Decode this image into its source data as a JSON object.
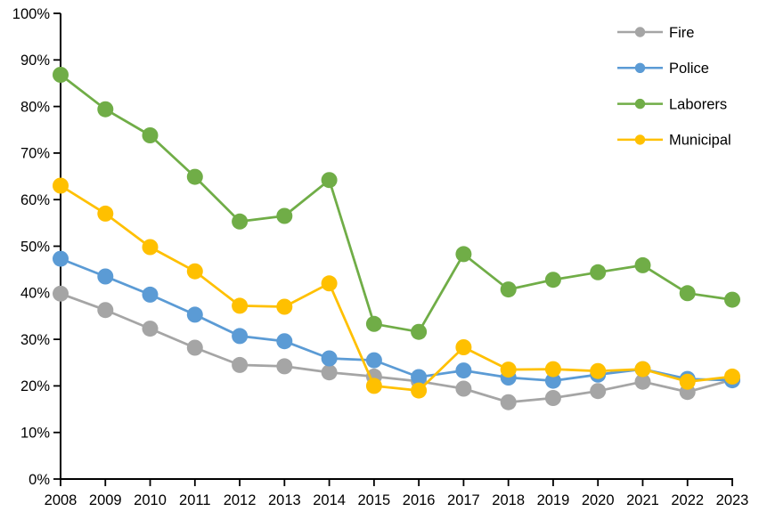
{
  "chart_data": {
    "type": "line",
    "x": [
      2008,
      2009,
      2010,
      2011,
      2012,
      2013,
      2014,
      2015,
      2016,
      2017,
      2018,
      2019,
      2020,
      2021,
      2022,
      2023
    ],
    "series": [
      {
        "name": "Fire",
        "color": "#A5A5A5",
        "values": [
          39.8,
          36.3,
          32.3,
          28.2,
          24.5,
          24.2,
          22.9,
          22.0,
          21.0,
          19.4,
          16.5,
          17.4,
          18.9,
          20.9,
          18.7,
          21.3
        ]
      },
      {
        "name": "Police",
        "color": "#5B9BD5",
        "values": [
          47.3,
          43.5,
          39.6,
          35.3,
          30.7,
          29.6,
          25.9,
          25.5,
          21.9,
          23.3,
          21.8,
          21.1,
          22.4,
          23.6,
          21.5,
          21.2
        ]
      },
      {
        "name": "Laborers",
        "color": "#70AD47",
        "values": [
          86.8,
          79.4,
          73.8,
          64.9,
          55.3,
          56.5,
          64.2,
          33.3,
          31.6,
          48.3,
          40.7,
          42.8,
          44.4,
          45.9,
          39.9,
          38.5
        ]
      },
      {
        "name": "Municipal",
        "color": "#FFC000",
        "values": [
          63.0,
          57.0,
          49.8,
          44.6,
          37.2,
          37.0,
          42.0,
          20.0,
          19.0,
          28.3,
          23.5,
          23.6,
          23.2,
          23.6,
          20.9,
          22.0
        ]
      }
    ],
    "title": "",
    "xlabel": "",
    "ylabel": "",
    "ylim": [
      0,
      100
    ],
    "ytick_step": 10,
    "ytick_suffix": "%",
    "ytick_labels": [
      "0%",
      "10%",
      "20%",
      "30%",
      "40%",
      "50%",
      "60%",
      "70%",
      "80%",
      "90%",
      "100%"
    ],
    "xtick_labels": [
      "2008",
      "2009",
      "2010",
      "2011",
      "2012",
      "2013",
      "2014",
      "2015",
      "2016",
      "2017",
      "2018",
      "2019",
      "2020",
      "2021",
      "2022",
      "2023"
    ],
    "legend_position": "top-right",
    "legend_entries": [
      "Fire",
      "Police",
      "Laborers",
      "Municipal"
    ],
    "grid": false,
    "axis_color": "#000000",
    "background_color": "#FFFFFF"
  }
}
